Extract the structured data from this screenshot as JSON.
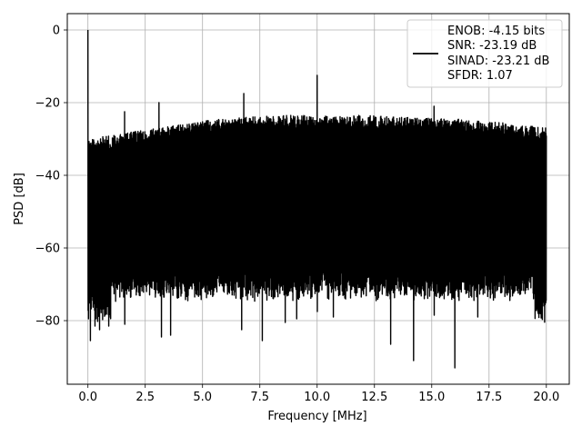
{
  "chart_data": {
    "type": "line",
    "title": "",
    "xlabel": "Frequency [MHz]",
    "ylabel": "PSD [dB]",
    "xlim": [
      -0.9,
      21.0
    ],
    "ylim": [
      -97.5,
      4.5
    ],
    "xticks": [
      0.0,
      2.5,
      5.0,
      7.5,
      10.0,
      12.5,
      15.0,
      17.5,
      20.0
    ],
    "xtick_labels": [
      "0.0",
      "2.5",
      "5.0",
      "7.5",
      "10.0",
      "12.5",
      "15.0",
      "17.5",
      "20.0"
    ],
    "yticks": [
      0,
      -20,
      -40,
      -60,
      -80
    ],
    "ytick_labels": [
      "0",
      "−20",
      "−40",
      "−60",
      "−80"
    ],
    "grid": true,
    "legend": {
      "location": "upper right",
      "entries": [
        "ENOB: -4.15 bits",
        "SNR: -23.19 dB",
        "SINAD: -23.21 dB",
        "SFDR: 1.07"
      ]
    },
    "series": [
      {
        "color": "#000000",
        "noise_band": {
          "x_range": [
            0.0,
            20.0
          ],
          "upper_envelope": [
            [
              0.0,
              -30
            ],
            [
              2.0,
              -28
            ],
            [
              5.0,
              -25
            ],
            [
              8.0,
              -23.5
            ],
            [
              12.0,
              -23.5
            ],
            [
              16.0,
              -24.5
            ],
            [
              18.0,
              -25.5
            ],
            [
              20.0,
              -27
            ]
          ],
          "lower_floor_typical": -68,
          "lower_floor_edge": -74
        },
        "peaks": [
          {
            "x": 0.0,
            "y": 0.0
          },
          {
            "x": 1.6,
            "y": -22.5
          },
          {
            "x": 3.1,
            "y": -20.0
          },
          {
            "x": 6.8,
            "y": -17.5
          },
          {
            "x": 10.0,
            "y": -12.5
          },
          {
            "x": 15.1,
            "y": -21.0
          }
        ],
        "dips": [
          {
            "x": 0.1,
            "y": -85.5
          },
          {
            "x": 0.3,
            "y": -81.5
          },
          {
            "x": 0.5,
            "y": -82.5
          },
          {
            "x": 0.9,
            "y": -81.5
          },
          {
            "x": 1.6,
            "y": -81.0
          },
          {
            "x": 3.2,
            "y": -84.5
          },
          {
            "x": 3.6,
            "y": -84.0
          },
          {
            "x": 6.7,
            "y": -82.5
          },
          {
            "x": 7.6,
            "y": -85.5
          },
          {
            "x": 8.6,
            "y": -80.5
          },
          {
            "x": 9.1,
            "y": -79.5
          },
          {
            "x": 10.0,
            "y": -77.5
          },
          {
            "x": 10.7,
            "y": -79.0
          },
          {
            "x": 13.2,
            "y": -86.5
          },
          {
            "x": 14.2,
            "y": -91.0
          },
          {
            "x": 15.1,
            "y": -78.5
          },
          {
            "x": 16.0,
            "y": -93.0
          },
          {
            "x": 17.0,
            "y": -79.5
          },
          {
            "x": 17.0,
            "y": -79.0
          }
        ]
      }
    ]
  }
}
